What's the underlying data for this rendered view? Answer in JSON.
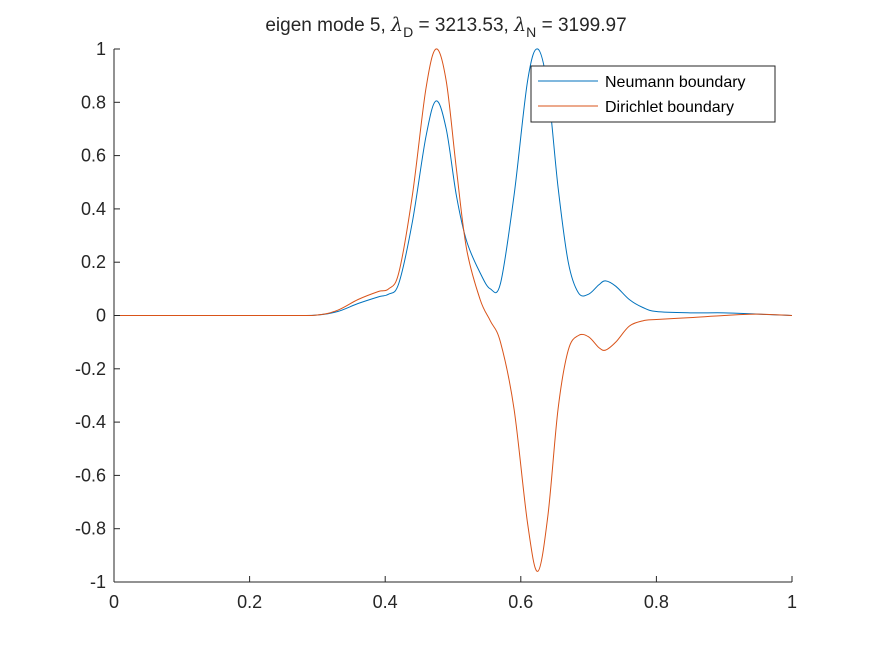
{
  "chart_data": {
    "type": "line",
    "title": {
      "prefix": "eigen mode 5, ",
      "lambda_symbol": "λ",
      "d_sub": "D",
      "d_value": " = 3213.53, ",
      "n_sub": "N",
      "n_value": " = 3199.97"
    },
    "xlabel": "",
    "ylabel": "",
    "xlim": [
      0,
      1
    ],
    "ylim": [
      -1,
      1
    ],
    "x_ticks": [
      0,
      0.2,
      0.4,
      0.6,
      0.8,
      1
    ],
    "x_tick_labels": [
      "0",
      "0.2",
      "0.4",
      "0.6",
      "0.8",
      "1"
    ],
    "y_ticks": [
      -1,
      -0.8,
      -0.6,
      -0.4,
      -0.2,
      0,
      0.2,
      0.4,
      0.6,
      0.8,
      1
    ],
    "y_tick_labels": [
      "-1",
      "-0.8",
      "-0.6",
      "-0.4",
      "-0.2",
      "0",
      "0.2",
      "0.4",
      "0.6",
      "0.8",
      "1"
    ],
    "grid": false,
    "legend_position": "top-right",
    "series": [
      {
        "name": "Neumann boundary",
        "color": "#0072BD",
        "points": [
          [
            0,
            0
          ],
          [
            0.25,
            0.0
          ],
          [
            0.3,
            0.002
          ],
          [
            0.33,
            0.015
          ],
          [
            0.36,
            0.045
          ],
          [
            0.39,
            0.07
          ],
          [
            0.405,
            0.08
          ],
          [
            0.42,
            0.12
          ],
          [
            0.44,
            0.35
          ],
          [
            0.46,
            0.67
          ],
          [
            0.475,
            0.805
          ],
          [
            0.49,
            0.7
          ],
          [
            0.505,
            0.45
          ],
          [
            0.52,
            0.28
          ],
          [
            0.54,
            0.16
          ],
          [
            0.555,
            0.1
          ],
          [
            0.57,
            0.12
          ],
          [
            0.59,
            0.45
          ],
          [
            0.61,
            0.88
          ],
          [
            0.625,
            1.0
          ],
          [
            0.64,
            0.85
          ],
          [
            0.655,
            0.48
          ],
          [
            0.67,
            0.2
          ],
          [
            0.685,
            0.085
          ],
          [
            0.7,
            0.08
          ],
          [
            0.715,
            0.115
          ],
          [
            0.725,
            0.13
          ],
          [
            0.74,
            0.11
          ],
          [
            0.76,
            0.06
          ],
          [
            0.78,
            0.03
          ],
          [
            0.8,
            0.015
          ],
          [
            0.85,
            0.01
          ],
          [
            0.9,
            0.01
          ],
          [
            0.95,
            0.005
          ],
          [
            1.0,
            0
          ]
        ]
      },
      {
        "name": "Dirichlet boundary",
        "color": "#D95319",
        "points": [
          [
            0,
            0
          ],
          [
            0.25,
            0.0
          ],
          [
            0.3,
            0.002
          ],
          [
            0.33,
            0.02
          ],
          [
            0.36,
            0.06
          ],
          [
            0.39,
            0.09
          ],
          [
            0.405,
            0.1
          ],
          [
            0.42,
            0.16
          ],
          [
            0.44,
            0.45
          ],
          [
            0.46,
            0.85
          ],
          [
            0.475,
            1.0
          ],
          [
            0.49,
            0.88
          ],
          [
            0.505,
            0.55
          ],
          [
            0.52,
            0.25
          ],
          [
            0.54,
            0.06
          ],
          [
            0.555,
            -0.02
          ],
          [
            0.57,
            -0.1
          ],
          [
            0.59,
            -0.35
          ],
          [
            0.61,
            -0.78
          ],
          [
            0.625,
            -0.96
          ],
          [
            0.64,
            -0.75
          ],
          [
            0.655,
            -0.35
          ],
          [
            0.67,
            -0.13
          ],
          [
            0.685,
            -0.075
          ],
          [
            0.7,
            -0.08
          ],
          [
            0.715,
            -0.12
          ],
          [
            0.725,
            -0.13
          ],
          [
            0.74,
            -0.1
          ],
          [
            0.76,
            -0.04
          ],
          [
            0.78,
            -0.02
          ],
          [
            0.8,
            -0.015
          ],
          [
            0.85,
            -0.008
          ],
          [
            0.9,
            0.0
          ],
          [
            0.95,
            0.005
          ],
          [
            1.0,
            0
          ]
        ]
      }
    ]
  }
}
